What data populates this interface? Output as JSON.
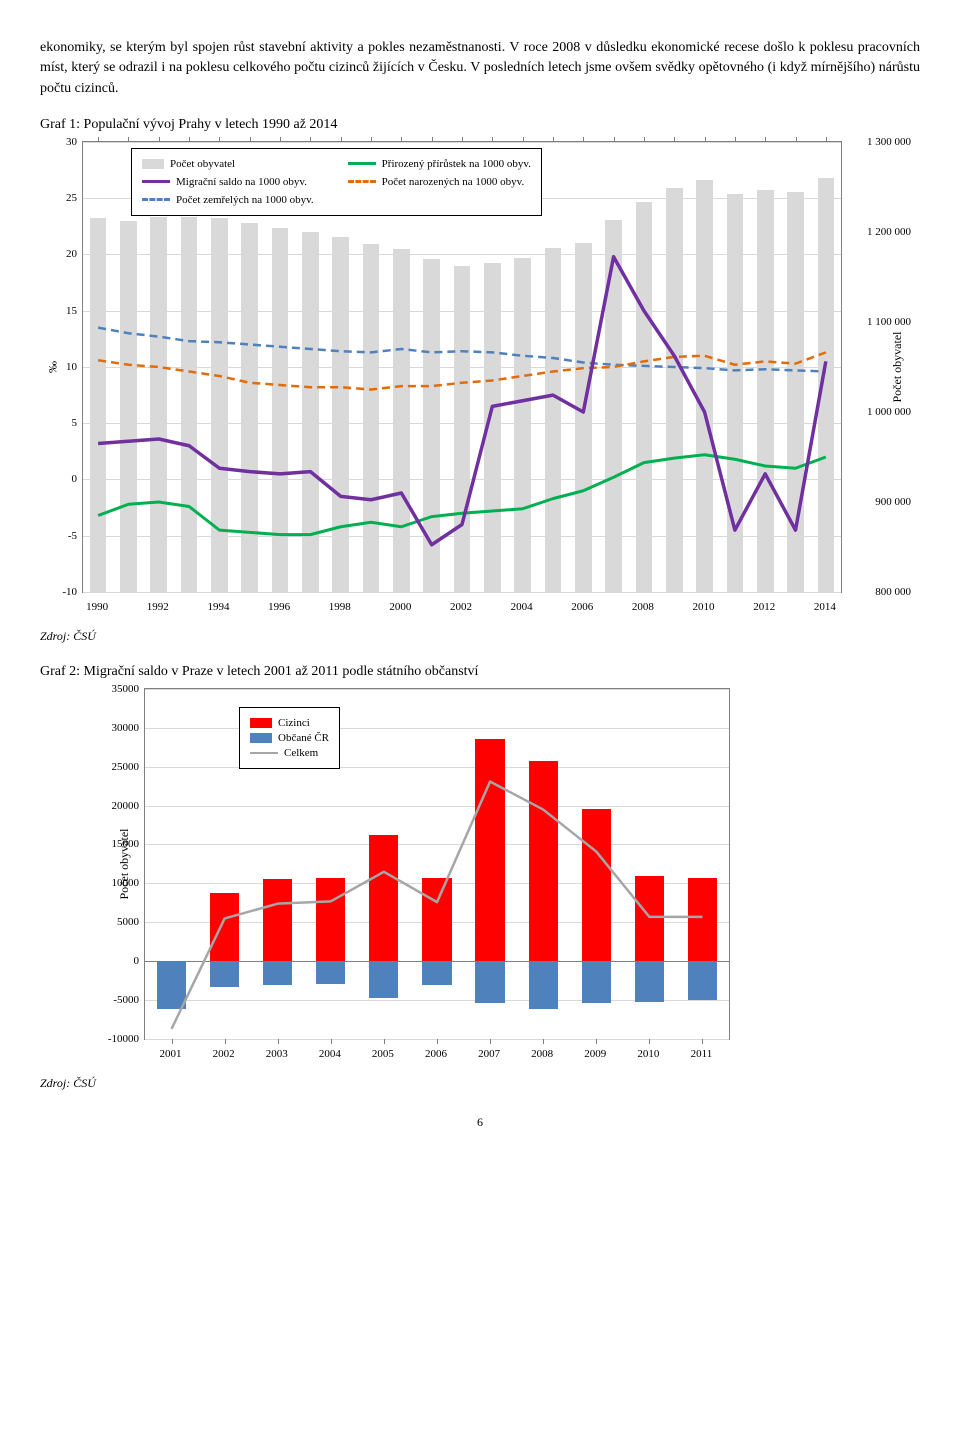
{
  "intro_text": "ekonomiky, se kterým byl spojen růst stavební aktivity a pokles nezaměstnanosti. V roce 2008 v důsledku ekonomické recese došlo k poklesu pracovních míst, který se odrazil i na poklesu celkového počtu cizinců žijících v Česku. V posledních letech jsme ovšem svědky opětovného (i když mírnějšího) nárůstu počtu cizinců.",
  "chart1": {
    "title": "Graf 1: Populační vývoj Prahy v letech 1990 až 2014",
    "y_left": {
      "min": -10,
      "max": 30,
      "ticks": [
        -10,
        -5,
        0,
        5,
        10,
        15,
        20,
        25,
        30
      ],
      "label": "‰"
    },
    "y_right": {
      "min": 800000,
      "max": 1300000,
      "ticks": [
        800000,
        900000,
        1000000,
        1100000,
        1200000,
        1300000
      ]
    },
    "y_right_label": "Počet obyvatel",
    "x_ticks": [
      1990,
      1992,
      1994,
      1996,
      1998,
      2000,
      2002,
      2004,
      2006,
      2008,
      2010,
      2012,
      2014
    ],
    "years": [
      1990,
      1991,
      1992,
      1993,
      1994,
      1995,
      1996,
      1997,
      1998,
      1999,
      2000,
      2001,
      2002,
      2003,
      2004,
      2005,
      2006,
      2007,
      2008,
      2009,
      2010,
      2011,
      2012,
      2013,
      2014
    ],
    "population": [
      1215000,
      1212000,
      1217000,
      1217000,
      1215000,
      1210000,
      1204000,
      1200000,
      1194000,
      1187000,
      1181000,
      1170000,
      1162000,
      1166000,
      1171000,
      1182000,
      1188000,
      1213000,
      1233000,
      1249000,
      1258000,
      1242000,
      1247000,
      1244000,
      1260000
    ],
    "natural": [
      -3.2,
      -2.2,
      -2.0,
      -2.4,
      -4.5,
      -4.7,
      -4.9,
      -4.9,
      -4.2,
      -3.8,
      -4.2,
      -3.3,
      -3.0,
      -2.8,
      -2.6,
      -1.7,
      -1.0,
      0.2,
      1.5,
      1.9,
      2.2,
      1.8,
      1.2,
      1.0,
      2.0
    ],
    "migration": [
      3.2,
      3.4,
      3.6,
      3.0,
      1.0,
      0.7,
      0.5,
      0.7,
      -1.5,
      -1.8,
      -1.2,
      -5.8,
      -4.0,
      6.5,
      7.0,
      7.5,
      6.0,
      19.8,
      15.0,
      11.0,
      6.0,
      -4.5,
      0.5,
      -4.5,
      10.5
    ],
    "births": [
      10.6,
      10.2,
      10.0,
      9.6,
      9.2,
      8.6,
      8.4,
      8.2,
      8.2,
      8.0,
      8.3,
      8.3,
      8.6,
      8.8,
      9.2,
      9.6,
      9.9,
      10.0,
      10.5,
      10.9,
      11.0,
      10.2,
      10.5,
      10.3,
      11.3
    ],
    "deaths": [
      13.5,
      13.0,
      12.7,
      12.3,
      12.2,
      12.0,
      11.8,
      11.6,
      11.4,
      11.3,
      11.6,
      11.3,
      11.4,
      11.3,
      11.0,
      10.8,
      10.4,
      10.2,
      10.1,
      10.0,
      9.9,
      9.7,
      9.8,
      9.7,
      9.6
    ],
    "colors": {
      "bars": "#d9d9d9",
      "natural": "#00b050",
      "migration": "#7030a0",
      "births": "#e26b0a",
      "deaths": "#4f81bd",
      "grid": "#d9d9d9",
      "border": "#808080"
    },
    "legend": {
      "pop": "Počet obyvatel",
      "natural": "Přirozený přírůstek na 1000 obyv.",
      "migration": "Migrační saldo na 1000 obyv.",
      "births": "Počet narozených na 1000 obyv.",
      "deaths": "Počet zemřelých na 1000 obyv."
    },
    "source": "Zdroj: ČSÚ"
  },
  "chart2": {
    "title": "Graf 2: Migrační saldo v Praze v letech 2001 až 2011 podle státního občanství",
    "y": {
      "min": -10000,
      "max": 35000,
      "ticks": [
        -10000,
        -5000,
        0,
        5000,
        10000,
        15000,
        20000,
        25000,
        30000,
        35000
      ],
      "label": "Počet obyvatel"
    },
    "years": [
      2001,
      2002,
      2003,
      2004,
      2005,
      2006,
      2007,
      2008,
      2009,
      2010,
      2011
    ],
    "foreigners": [
      -2500,
      8800,
      10500,
      10700,
      16200,
      10700,
      28500,
      25700,
      19500,
      10900,
      10700
    ],
    "czechs": [
      -6200,
      -3300,
      -3100,
      -3000,
      -4700,
      -3100,
      -5400,
      -6200,
      -5400,
      -5200,
      -5000
    ],
    "total": [
      -8700,
      5500,
      7400,
      7700,
      11500,
      7600,
      23100,
      19500,
      14100,
      5700,
      5700
    ],
    "colors": {
      "foreigners": "#ff0000",
      "czechs": "#4f81bd",
      "total": "#a6a6a6",
      "grid": "#d9d9d9",
      "border": "#808080"
    },
    "legend": {
      "foreigners": "Cizinci",
      "czechs": "Občané ČR",
      "total": "Celkem"
    },
    "source": "Zdroj: ČSÚ"
  },
  "page_number": "6"
}
